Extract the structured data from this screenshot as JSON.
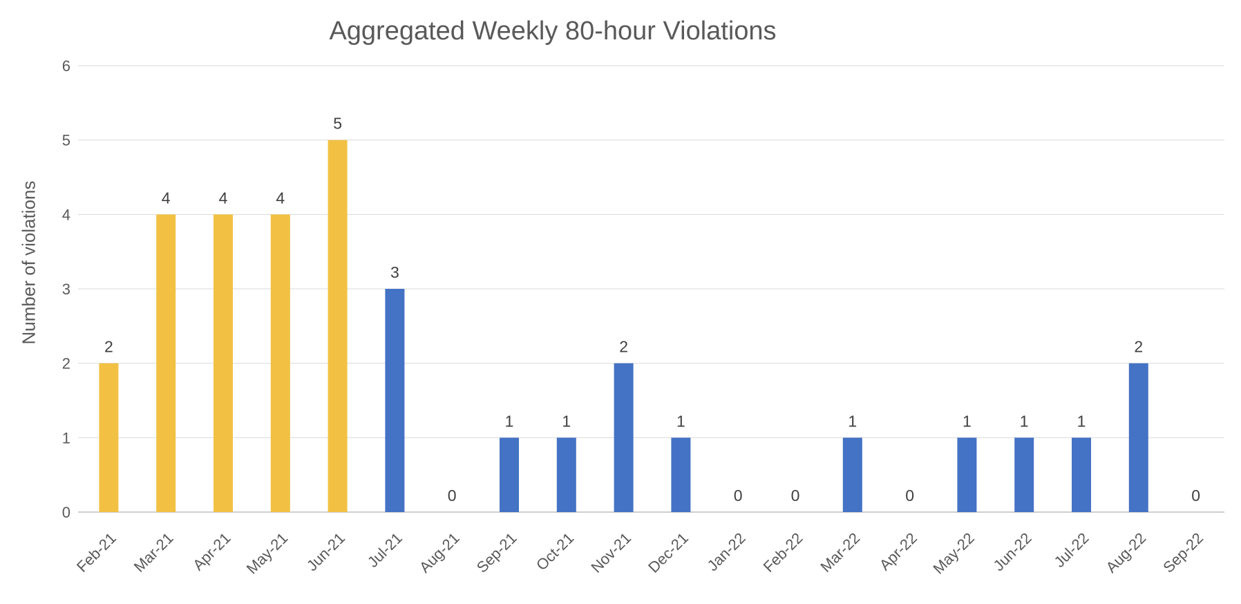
{
  "chart": {
    "title": "Aggregated Weekly 80-hour Violations",
    "y_axis_title": "Number of violations"
  },
  "chart_data": {
    "type": "bar",
    "title": "Aggregated Weekly 80-hour Violations",
    "xlabel": "",
    "ylabel": "Number of violations",
    "categories": [
      "Feb-21",
      "Mar-21",
      "Apr-21",
      "May-21",
      "Jun-21",
      "Jul-21",
      "Aug-21",
      "Sep-21",
      "Oct-21",
      "Nov-21",
      "Dec-21",
      "Jan-22",
      "Feb-22",
      "Mar-22",
      "Apr-22",
      "May-22",
      "Jun-22",
      "Jul-22",
      "Aug-22",
      "Sep-22"
    ],
    "values": [
      2,
      4,
      4,
      4,
      5,
      3,
      0,
      1,
      1,
      2,
      1,
      0,
      0,
      1,
      0,
      1,
      1,
      1,
      2,
      0
    ],
    "highlighted_bar_count": 5,
    "ylim": [
      0,
      6
    ],
    "yticks": [
      0,
      1,
      2,
      3,
      4,
      5,
      6
    ],
    "ytick_step": 1,
    "grid": true,
    "data_labels": true,
    "x_label_rotation_deg": 45,
    "legend": "none"
  },
  "style": {
    "highlight_bar_color": "#F2C143",
    "default_bar_color": "#4472C4",
    "gridline_color": "#D9D9D9",
    "axis_line_color": "#BFBFBF",
    "axis_text_color": "#595959",
    "data_label_color": "#404040",
    "title_color": "#595959"
  }
}
